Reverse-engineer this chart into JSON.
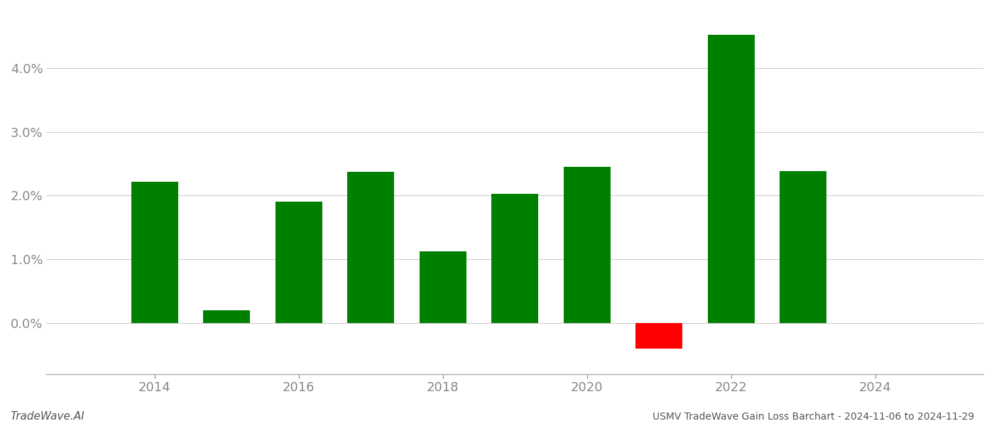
{
  "years": [
    2014,
    2015,
    2016,
    2017,
    2018,
    2019,
    2020,
    2021,
    2022,
    2023
  ],
  "values": [
    0.0222,
    0.002,
    0.019,
    0.0237,
    0.0112,
    0.0202,
    0.0245,
    -0.004,
    0.0452,
    0.0238
  ],
  "colors": [
    "#008000",
    "#008000",
    "#008000",
    "#008000",
    "#008000",
    "#008000",
    "#008000",
    "#ff0000",
    "#008000",
    "#008000"
  ],
  "title": "USMV TradeWave Gain Loss Barchart - 2024-11-06 to 2024-11-29",
  "watermark": "TradeWave.AI",
  "ylim_min": -0.008,
  "ylim_max": 0.049,
  "yticks": [
    0.0,
    0.01,
    0.02,
    0.03,
    0.04
  ],
  "background_color": "#ffffff",
  "grid_color": "#cccccc",
  "axis_label_color": "#888888",
  "title_color": "#555555",
  "bar_width": 0.65
}
